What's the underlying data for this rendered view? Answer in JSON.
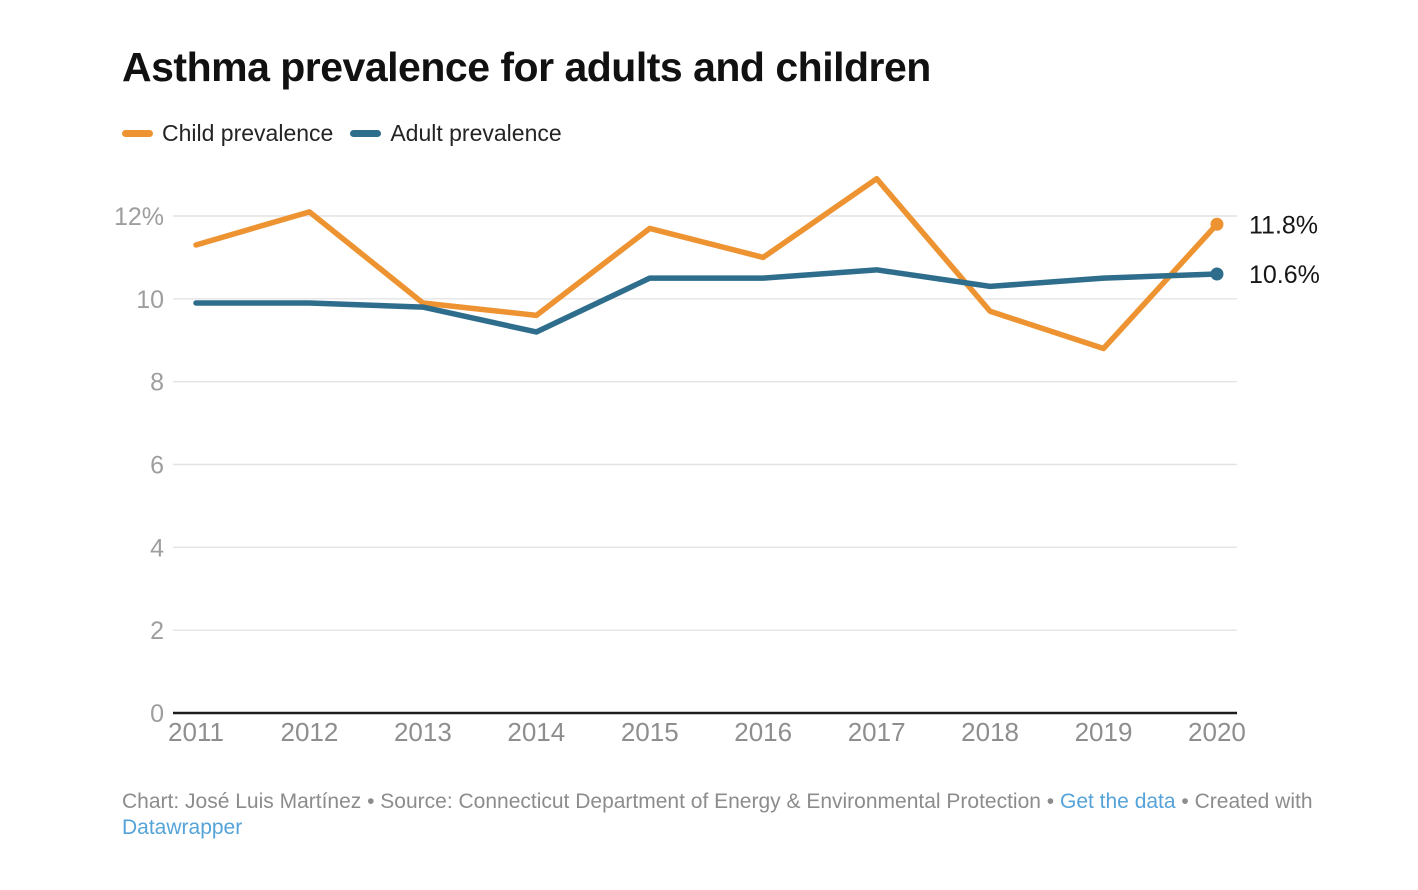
{
  "header": {
    "title": "Asthma prevalence for adults and children"
  },
  "legend": {
    "items": [
      {
        "label": "Child prevalence",
        "color": "#ED9331"
      },
      {
        "label": "Adult prevalence",
        "color": "#2E6D8C"
      }
    ]
  },
  "chart_data": {
    "type": "line",
    "x": [
      2011,
      2012,
      2013,
      2014,
      2015,
      2016,
      2017,
      2018,
      2019,
      2020
    ],
    "series": [
      {
        "name": "Child prevalence",
        "color": "#ED9331",
        "values": [
          11.3,
          12.1,
          9.9,
          9.6,
          11.7,
          11.0,
          12.9,
          9.7,
          8.8,
          11.8
        ],
        "end_label": "11.8%"
      },
      {
        "name": "Adult prevalence",
        "color": "#2E6D8C",
        "values": [
          9.9,
          9.9,
          9.8,
          9.2,
          10.5,
          10.5,
          10.7,
          10.3,
          10.5,
          10.6
        ],
        "end_label": "10.6%"
      }
    ],
    "y_ticks": [
      {
        "value": 0,
        "label": "0"
      },
      {
        "value": 2,
        "label": "2"
      },
      {
        "value": 4,
        "label": "4"
      },
      {
        "value": 6,
        "label": "6"
      },
      {
        "value": 8,
        "label": "8"
      },
      {
        "value": 10,
        "label": "10"
      },
      {
        "value": 12,
        "label": "12%"
      }
    ],
    "ylim": [
      0,
      13.4
    ],
    "grid": "horizontal",
    "legend_position": "top",
    "colors": {
      "gridline": "#e4e4e4",
      "baseline": "#1c1c1c",
      "y_tick_text": "#9e9e9e",
      "x_tick_text": "#8e8e8e",
      "end_label_text": "#161616"
    }
  },
  "footer": {
    "credit_prefix": "Chart: José Luis Martínez • Source: Connecticut Department of Energy & Environmental Protection • ",
    "get_data_link": "Get the data",
    "separator": " • ",
    "created_with": "Created with ",
    "datawrapper_link": "Datawrapper",
    "link_color": "#55a3d8"
  }
}
